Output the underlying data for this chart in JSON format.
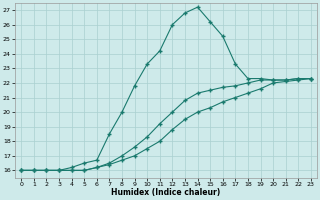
{
  "xlabel": "Humidex (Indice chaleur)",
  "bg_color": "#ceeaea",
  "grid_color": "#aad0d0",
  "line_color": "#1a7a6e",
  "xlim": [
    -0.5,
    23.5
  ],
  "ylim": [
    15.5,
    27.5
  ],
  "xticks": [
    0,
    1,
    2,
    3,
    4,
    5,
    6,
    7,
    8,
    9,
    10,
    11,
    12,
    13,
    14,
    15,
    16,
    17,
    18,
    19,
    20,
    21,
    22,
    23
  ],
  "yticks": [
    16,
    17,
    18,
    19,
    20,
    21,
    22,
    23,
    24,
    25,
    26,
    27
  ],
  "series": [
    [
      16.0,
      16.0,
      16.0,
      16.0,
      16.2,
      16.5,
      16.7,
      18.5,
      20.0,
      21.8,
      23.3,
      24.2,
      26.0,
      26.8,
      27.2,
      26.2,
      25.2,
      23.3,
      22.3,
      22.3,
      22.2,
      22.2,
      22.3,
      22.3
    ],
    [
      16.0,
      16.0,
      16.0,
      16.0,
      16.0,
      16.0,
      16.2,
      16.5,
      17.0,
      17.6,
      18.3,
      19.2,
      20.0,
      20.8,
      21.3,
      21.5,
      21.7,
      21.8,
      22.0,
      22.2,
      22.2,
      22.2,
      22.3,
      22.3
    ],
    [
      16.0,
      16.0,
      16.0,
      16.0,
      16.0,
      16.0,
      16.2,
      16.4,
      16.7,
      17.0,
      17.5,
      18.0,
      18.8,
      19.5,
      20.0,
      20.3,
      20.7,
      21.0,
      21.3,
      21.6,
      22.0,
      22.1,
      22.2,
      22.3
    ]
  ]
}
